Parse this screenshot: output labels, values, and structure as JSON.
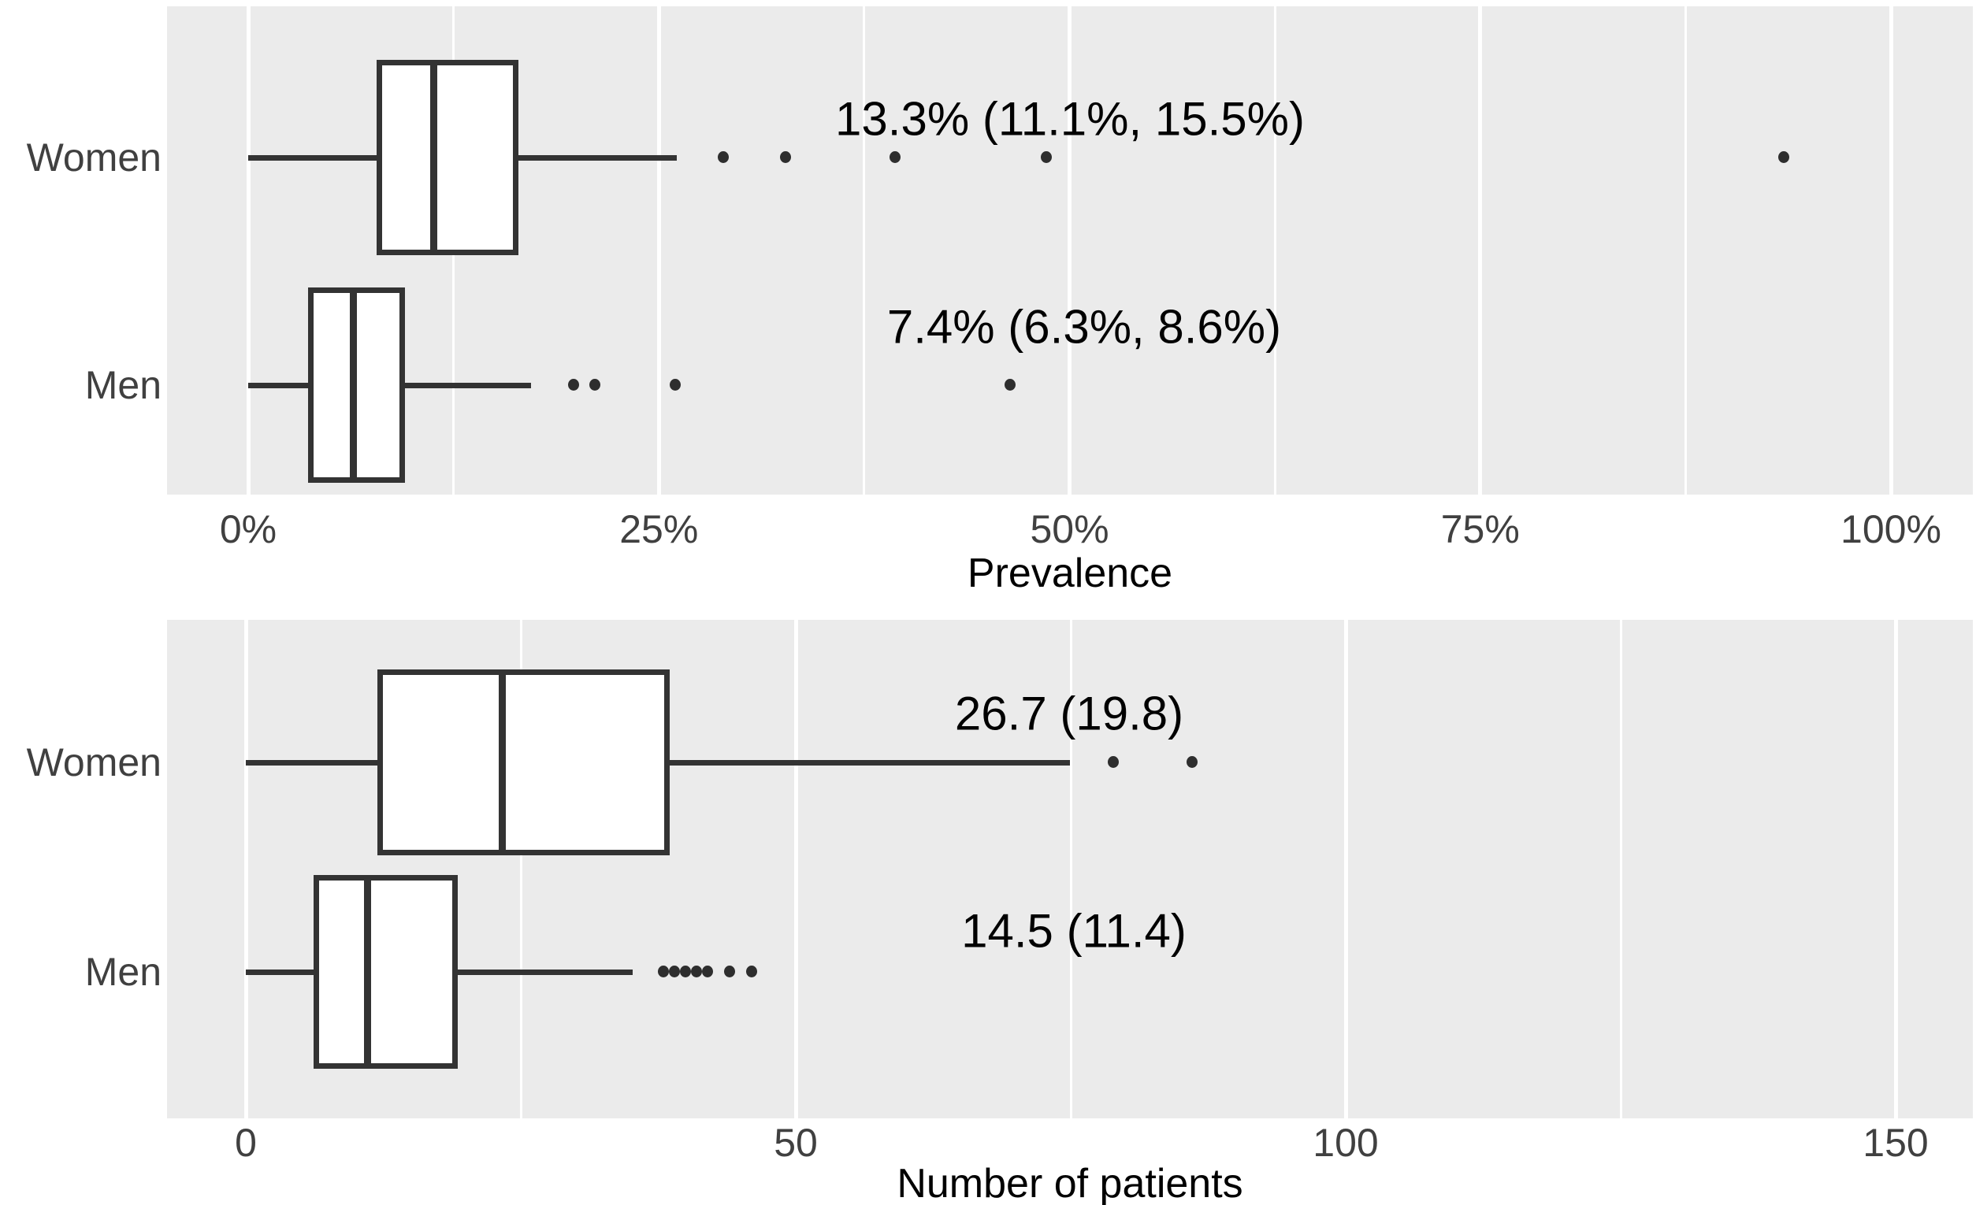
{
  "figure": {
    "titles": {
      "panel1_xlabel": "Prevalence",
      "panel2_xlabel": "Number of patients"
    }
  },
  "colors": {
    "bg": "#FFFFFF",
    "panel_bg": "#EBEBEB",
    "grid": "#FFFFFF",
    "stroke": "#333333",
    "fill": "#FFFFFF",
    "dot": "#2E2E2E",
    "axis_text": "#404040",
    "text": "#000000"
  },
  "chart_data": [
    {
      "type": "boxplot",
      "orientation": "horizontal",
      "xlabel": "Prevalence",
      "x_ticks": [
        "0%",
        "25%",
        "50%",
        "75%",
        "100%"
      ],
      "x_tick_values": [
        0,
        25,
        50,
        75,
        100
      ],
      "x_minor_gridlines": [
        12.5,
        37.5,
        62.5,
        87.5
      ],
      "xlim": [
        -5,
        105
      ],
      "grid": "on",
      "categories": [
        "Women",
        "Men"
      ],
      "rows": [
        {
          "label": "Women",
          "annotation": "13.3% (11.1%, 15.5%)",
          "whisker_low": 0,
          "q1": 8.0,
          "median": 11.3,
          "q3": 16.3,
          "whisker_high": 26.1,
          "outliers": [
            28.9,
            32.7,
            39.4,
            48.6,
            93.5
          ]
        },
        {
          "label": "Men",
          "annotation": "7.4% (6.3%, 8.6%)",
          "whisker_low": 0,
          "q1": 3.8,
          "median": 6.4,
          "q3": 9.4,
          "whisker_high": 17.2,
          "outliers": [
            19.8,
            21.1,
            26.0,
            46.4
          ]
        }
      ]
    },
    {
      "type": "boxplot",
      "orientation": "horizontal",
      "xlabel": "Number of patients",
      "x_ticks": [
        "0",
        "50",
        "100",
        "150"
      ],
      "x_tick_values": [
        0,
        50,
        100,
        150
      ],
      "x_minor_gridlines": [
        25,
        75,
        125
      ],
      "xlim": [
        -7,
        157
      ],
      "grid": "on",
      "categories": [
        "Women",
        "Men"
      ],
      "rows": [
        {
          "label": "Women",
          "annotation": "26.7 (19.8)",
          "whisker_low": 0,
          "q1": 12.2,
          "median": 23.3,
          "q3": 38.3,
          "whisker_high": 74.9,
          "outliers": [
            78.9,
            86.0
          ]
        },
        {
          "label": "Men",
          "annotation": "14.5 (11.4)",
          "whisker_low": 0,
          "q1": 6.4,
          "median": 11.1,
          "q3": 19.0,
          "whisker_high": 35.2,
          "outliers": [
            38,
            39,
            40,
            41,
            42,
            44,
            46
          ]
        }
      ]
    }
  ]
}
